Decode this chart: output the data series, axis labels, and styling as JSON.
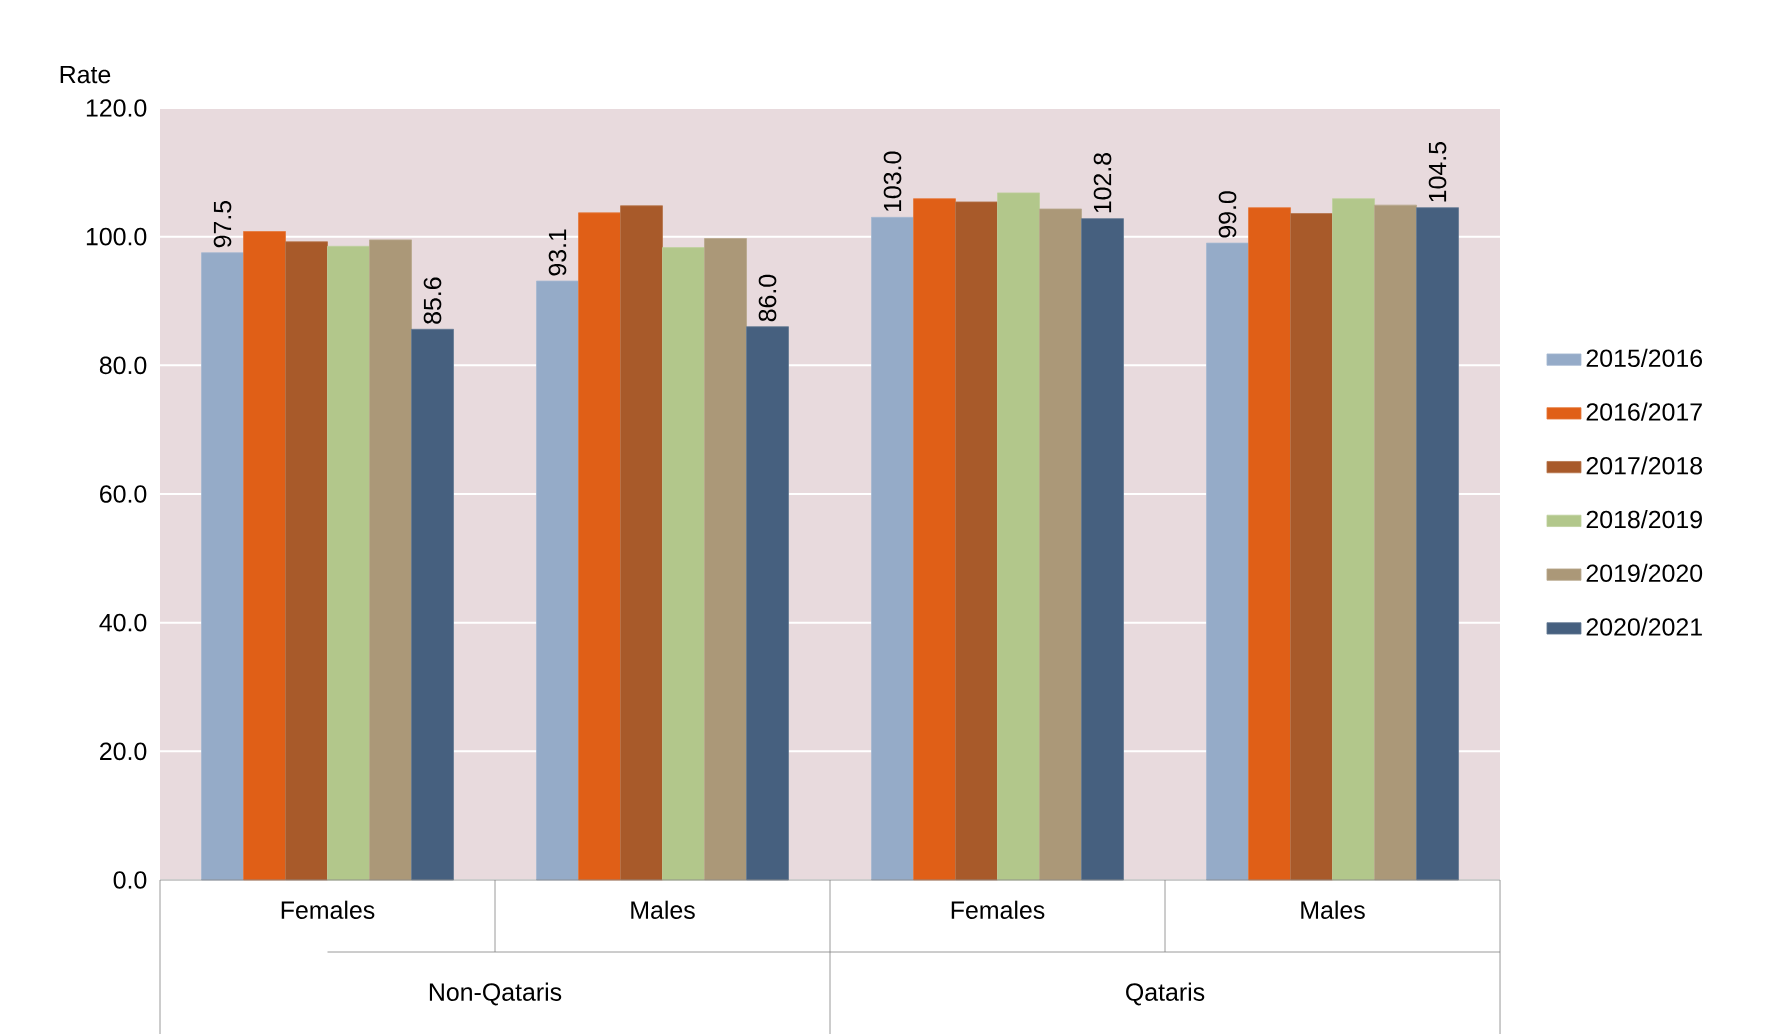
{
  "chart_data": {
    "type": "bar",
    "ylabel": "Rate",
    "categories": [
      "Females",
      "Males",
      "Females",
      "Males"
    ],
    "annotations": [
      "Non-Qataris",
      "Qataris"
    ],
    "ylim": [
      0,
      120
    ],
    "yticks": [
      {
        "value": 0,
        "label": "0.0"
      },
      {
        "value": 20,
        "label": "20.0"
      },
      {
        "value": 40,
        "label": "40.0"
      },
      {
        "value": 60,
        "label": "60.0"
      },
      {
        "value": 80,
        "label": "80.0"
      },
      {
        "value": 100,
        "label": "100.0"
      },
      {
        "value": 120,
        "label": "120.0"
      }
    ],
    "grid": "y",
    "legend": "right",
    "series": [
      {
        "name": "2015/2016",
        "color": "#95abc8",
        "values": [
          97.5,
          93.1,
          103.0,
          99.0
        ],
        "value_labels": [
          "97.5",
          "93.1",
          "103.0",
          "99.0"
        ]
      },
      {
        "name": "2016/2017",
        "color": "#e05f17",
        "values": [
          100.8,
          103.7,
          105.9,
          104.5
        ]
      },
      {
        "name": "2017/2018",
        "color": "#a85a2a",
        "values": [
          99.2,
          104.8,
          105.4,
          103.6
        ]
      },
      {
        "name": "2018/2019",
        "color": "#b2c78b",
        "values": [
          98.5,
          98.3,
          106.8,
          105.9
        ]
      },
      {
        "name": "2019/2020",
        "color": "#ab9878",
        "values": [
          99.5,
          99.7,
          104.3,
          104.9
        ]
      },
      {
        "name": "2020/2021",
        "color": "#46607f",
        "values": [
          85.6,
          86.0,
          102.8,
          104.5
        ],
        "value_labels": [
          "85.6",
          "86.0",
          "102.8",
          "104.5"
        ]
      }
    ]
  }
}
